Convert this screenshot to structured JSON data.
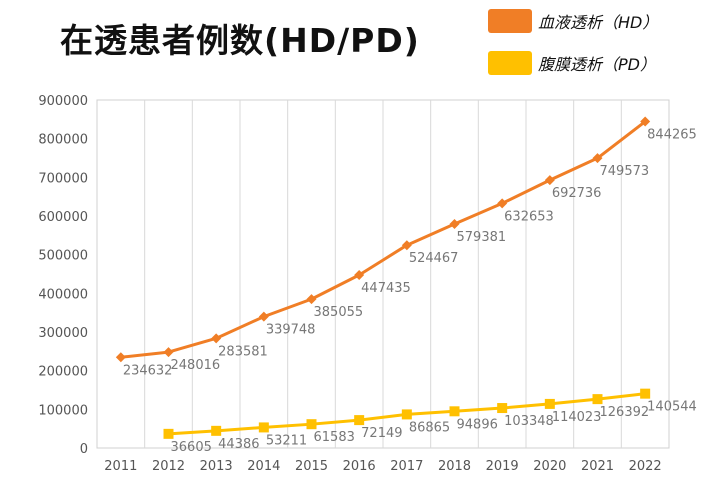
{
  "chart_data": {
    "type": "line",
    "title": "在透患者例数(HD/PD)",
    "xlabel": "",
    "ylabel": "",
    "categories": [
      "2011",
      "2012",
      "2013",
      "2014",
      "2015",
      "2016",
      "2017",
      "2018",
      "2019",
      "2020",
      "2021",
      "2022"
    ],
    "ylim": [
      0,
      900000
    ],
    "yticks": [
      "0",
      "100000",
      "200000",
      "300000",
      "400000",
      "500000",
      "600000",
      "700000",
      "800000",
      "900000"
    ],
    "grid": "vertical",
    "legend_position": "top-right",
    "series": [
      {
        "name": "血液透析（HD）",
        "color": "#f07e26",
        "marker": "diamond",
        "values": [
          234632,
          248016,
          283581,
          339748,
          385055,
          447435,
          524467,
          579381,
          632653,
          692736,
          749573,
          844265
        ],
        "labels": [
          "234632",
          "248016",
          "283581",
          "339748",
          "385055",
          "447435",
          "524467",
          "579381",
          "632653",
          "692736",
          "749573",
          "844265"
        ]
      },
      {
        "name": "腹膜透析（PD）",
        "color": "#ffc000",
        "marker": "square",
        "values": [
          null,
          36605,
          44386,
          53211,
          61583,
          72149,
          86865,
          94896,
          103348,
          114023,
          126392,
          140544
        ],
        "labels": [
          "",
          "36605",
          "44386",
          "53211",
          "61583",
          "72149",
          "86865",
          "94896",
          "103348",
          "114023",
          "126392",
          "140544"
        ]
      }
    ]
  }
}
